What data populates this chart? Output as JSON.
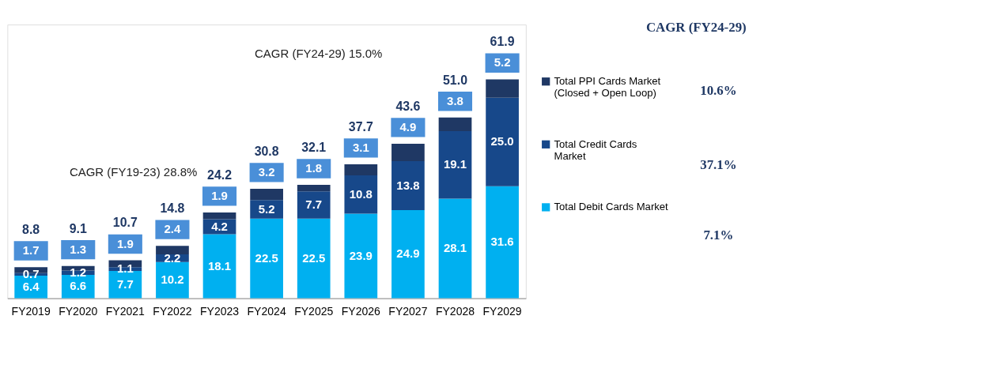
{
  "chart_data": {
    "type": "bar",
    "stacked": true,
    "legend": "right",
    "categories": [
      "FY2019",
      "FY2020",
      "FY2021",
      "FY2022",
      "FY2023",
      "FY2024",
      "FY2025",
      "FY2026",
      "FY2027",
      "FY2028",
      "FY2029"
    ],
    "series": [
      {
        "name": "Total Debit Cards Market",
        "color": "#00b0f0",
        "values": [
          6.4,
          6.6,
          7.7,
          10.2,
          18.1,
          22.5,
          22.5,
          23.9,
          24.9,
          28.1,
          31.6
        ],
        "value_labels": [
          "6.4",
          "6.6",
          "7.7",
          "10.2",
          "18.1",
          "22.5",
          "22.5",
          "23.9",
          "24.9",
          "28.1",
          "31.6"
        ]
      },
      {
        "name": "Total Credit Cards Market",
        "color": "#17488a",
        "values": [
          0.7,
          1.2,
          1.1,
          2.2,
          4.2,
          5.2,
          7.7,
          10.8,
          13.8,
          19.1,
          25.0
        ],
        "value_labels": [
          "0.7",
          "1.2",
          "1.1",
          "2.2",
          "4.2",
          "5.2",
          "7.7",
          "10.8",
          "13.8",
          "19.1",
          "25.0"
        ]
      },
      {
        "name": "Total PPI Cards Market (Closed + Open Loop)",
        "color": "#1f3864",
        "values": [
          1.7,
          1.3,
          1.9,
          2.4,
          1.9,
          3.2,
          1.8,
          3.1,
          4.9,
          3.8,
          5.2
        ],
        "value_labels": [
          "1.7",
          "1.3",
          "1.9",
          "2.4",
          "1.9",
          "3.2",
          "1.8",
          "3.1",
          "4.9",
          "3.8",
          "5.2"
        ]
      }
    ],
    "totals": [
      "8.8",
      "9.1",
      "10.7",
      "14.8",
      "24.2",
      "30.8",
      "32.1",
      "37.7",
      "43.6",
      "51.0",
      "61.9"
    ],
    "annotations": [
      "CAGR (FY19-23) 28.8%",
      "CAGR (FY24-29) 15.0%",
      "CAGR (FY24-29)",
      "10.6%",
      "37.1%",
      "7.1%"
    ]
  }
}
